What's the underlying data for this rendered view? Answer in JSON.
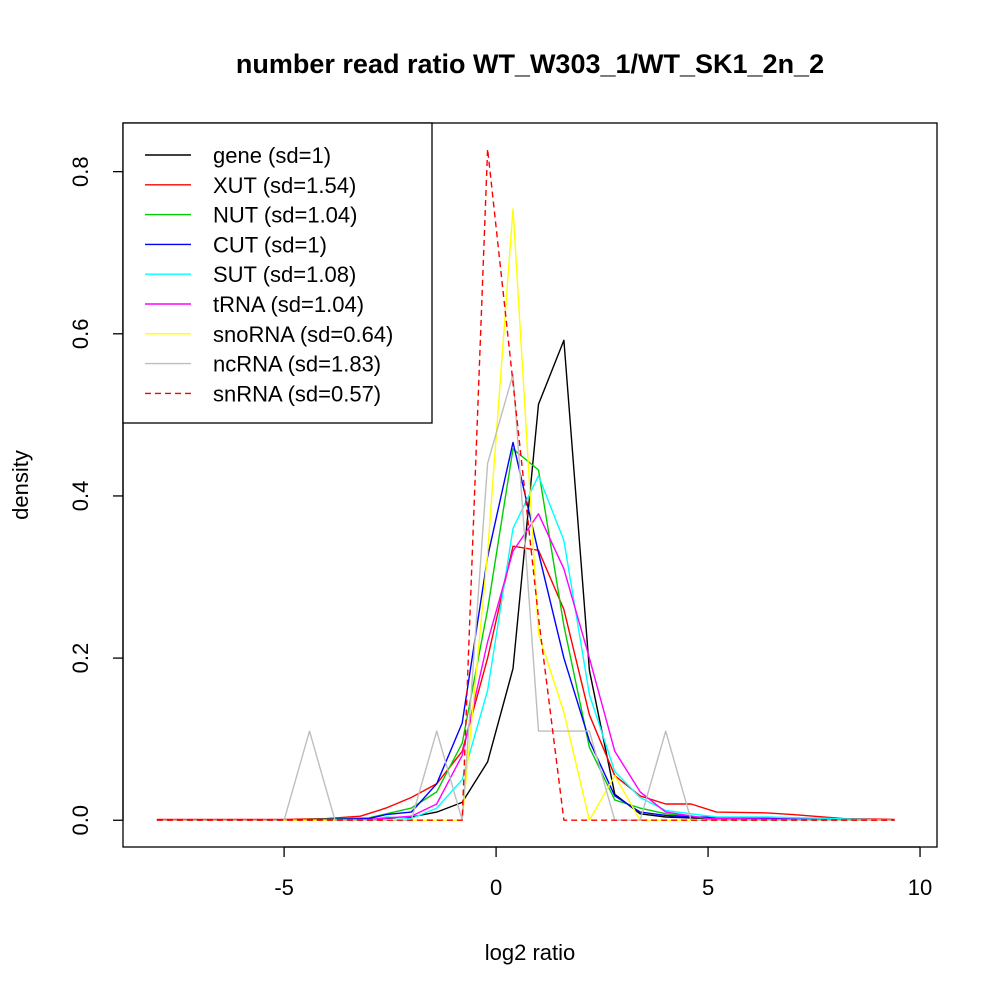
{
  "chart_data": {
    "type": "line",
    "title": "number read ratio WT_W303_1/WT_SK1_2n_2",
    "xlabel": "log2 ratio",
    "ylabel": "density",
    "xlim": [
      -8.8,
      10.4
    ],
    "ylim": [
      -0.033,
      0.86
    ],
    "x_ticks": [
      -5,
      0,
      5,
      10
    ],
    "y_ticks": [
      0.0,
      0.2,
      0.4,
      0.6,
      0.8
    ],
    "x_tick_labels": [
      "-5",
      "0",
      "5",
      "10"
    ],
    "y_tick_labels": [
      "0.0",
      "0.2",
      "0.4",
      "0.6",
      "0.8"
    ],
    "grid": false,
    "legend_position": "top-left",
    "series": [
      {
        "name": "gene (sd=1)",
        "color": "#000000",
        "dash": "solid",
        "x": [
          -8.0,
          -5.0,
          -3.0,
          -2.0,
          -1.4,
          -0.8,
          -0.2,
          0.4,
          1.0,
          1.6,
          2.2,
          2.8,
          3.4,
          4.0,
          5.0,
          7.0,
          9.4
        ],
        "y": [
          0.0,
          0.0,
          0.001,
          0.004,
          0.01,
          0.022,
          0.072,
          0.187,
          0.513,
          0.592,
          0.185,
          0.032,
          0.008,
          0.004,
          0.002,
          0.001,
          0.0
        ]
      },
      {
        "name": "XUT (sd=1.54)",
        "color": "#ff0000",
        "dash": "solid",
        "x": [
          -8.0,
          -5.0,
          -4.0,
          -3.2,
          -2.6,
          -2.0,
          -1.4,
          -0.8,
          -0.2,
          0.4,
          1.0,
          1.6,
          2.2,
          2.8,
          3.4,
          4.0,
          4.6,
          5.2,
          6.4,
          7.0,
          8.2,
          9.4
        ],
        "y": [
          0.001,
          0.001,
          0.002,
          0.005,
          0.015,
          0.028,
          0.045,
          0.085,
          0.2,
          0.338,
          0.333,
          0.26,
          0.13,
          0.055,
          0.03,
          0.02,
          0.02,
          0.01,
          0.009,
          0.007,
          0.002,
          0.001
        ]
      },
      {
        "name": "NUT (sd=1.04)",
        "color": "#00cd00",
        "dash": "solid",
        "x": [
          -8.0,
          -5.0,
          -3.0,
          -2.0,
          -1.4,
          -0.8,
          -0.2,
          0.4,
          1.0,
          1.6,
          2.2,
          2.8,
          3.4,
          4.0,
          5.0,
          9.4
        ],
        "y": [
          0.0,
          0.0,
          0.003,
          0.015,
          0.035,
          0.095,
          0.26,
          0.458,
          0.432,
          0.24,
          0.09,
          0.025,
          0.015,
          0.008,
          0.002,
          0.0
        ]
      },
      {
        "name": "CUT (sd=1)",
        "color": "#0000ff",
        "dash": "solid",
        "x": [
          -8.0,
          -5.0,
          -3.0,
          -2.6,
          -2.0,
          -1.4,
          -0.8,
          -0.2,
          0.4,
          1.0,
          1.6,
          2.2,
          2.8,
          3.4,
          4.0,
          4.6,
          6.4,
          9.4
        ],
        "y": [
          0.0,
          0.0,
          0.002,
          0.007,
          0.01,
          0.045,
          0.12,
          0.325,
          0.466,
          0.33,
          0.2,
          0.098,
          0.03,
          0.01,
          0.006,
          0.004,
          0.003,
          0.0
        ]
      },
      {
        "name": "SUT (sd=1.08)",
        "color": "#00ffff",
        "dash": "solid",
        "x": [
          -6.0,
          -3.0,
          -2.6,
          -2.0,
          -1.4,
          -0.8,
          -0.2,
          0.4,
          1.0,
          1.6,
          2.2,
          2.8,
          3.4,
          4.0,
          4.6,
          5.2,
          6.4,
          9.4
        ],
        "y": [
          0.0,
          0.0,
          0.004,
          0.002,
          0.015,
          0.05,
          0.16,
          0.36,
          0.425,
          0.345,
          0.155,
          0.06,
          0.028,
          0.012,
          0.008,
          0.004,
          0.004,
          0.0
        ]
      },
      {
        "name": "tRNA (sd=1.04)",
        "color": "#ff00ff",
        "dash": "solid",
        "x": [
          -8.0,
          -5.0,
          -3.0,
          -2.0,
          -1.4,
          -0.8,
          -0.2,
          0.4,
          1.0,
          1.6,
          2.2,
          2.8,
          3.4,
          4.0,
          5.0,
          9.4
        ],
        "y": [
          0.0,
          0.0,
          0.001,
          0.005,
          0.02,
          0.08,
          0.22,
          0.332,
          0.378,
          0.31,
          0.2,
          0.085,
          0.035,
          0.01,
          0.002,
          0.0
        ]
      },
      {
        "name": "snoRNA (sd=0.64)",
        "color": "#ffff00",
        "dash": "solid",
        "x": [
          -8.0,
          -5.0,
          -1.4,
          -0.8,
          -0.2,
          0.4,
          1.0,
          1.6,
          2.2,
          2.8,
          3.4,
          9.4
        ],
        "y": [
          0.0,
          0.0,
          0.0,
          0.0,
          0.33,
          0.754,
          0.23,
          0.133,
          0.0,
          0.055,
          0.0,
          0.0
        ]
      },
      {
        "name": "ncRNA (sd=1.83)",
        "color": "#bebebe",
        "dash": "solid",
        "x": [
          -8.0,
          -5.0,
          -4.4,
          -3.8,
          -2.0,
          -1.4,
          -0.8,
          -0.2,
          0.4,
          1.0,
          1.6,
          2.2,
          2.8,
          3.4,
          4.0,
          4.6,
          9.4
        ],
        "y": [
          0.0,
          0.0,
          0.11,
          0.0,
          0.0,
          0.11,
          0.0,
          0.44,
          0.55,
          0.11,
          0.11,
          0.11,
          0.0,
          0.0,
          0.11,
          0.0,
          0.0
        ]
      },
      {
        "name": "snRNA (sd=0.57)",
        "color": "#ff0000",
        "dash": "dashed",
        "x": [
          -8.0,
          -0.8,
          -0.2,
          1.0,
          1.6,
          9.4
        ],
        "y": [
          0.0,
          0.0,
          0.828,
          0.25,
          0.0,
          0.0
        ]
      }
    ]
  }
}
